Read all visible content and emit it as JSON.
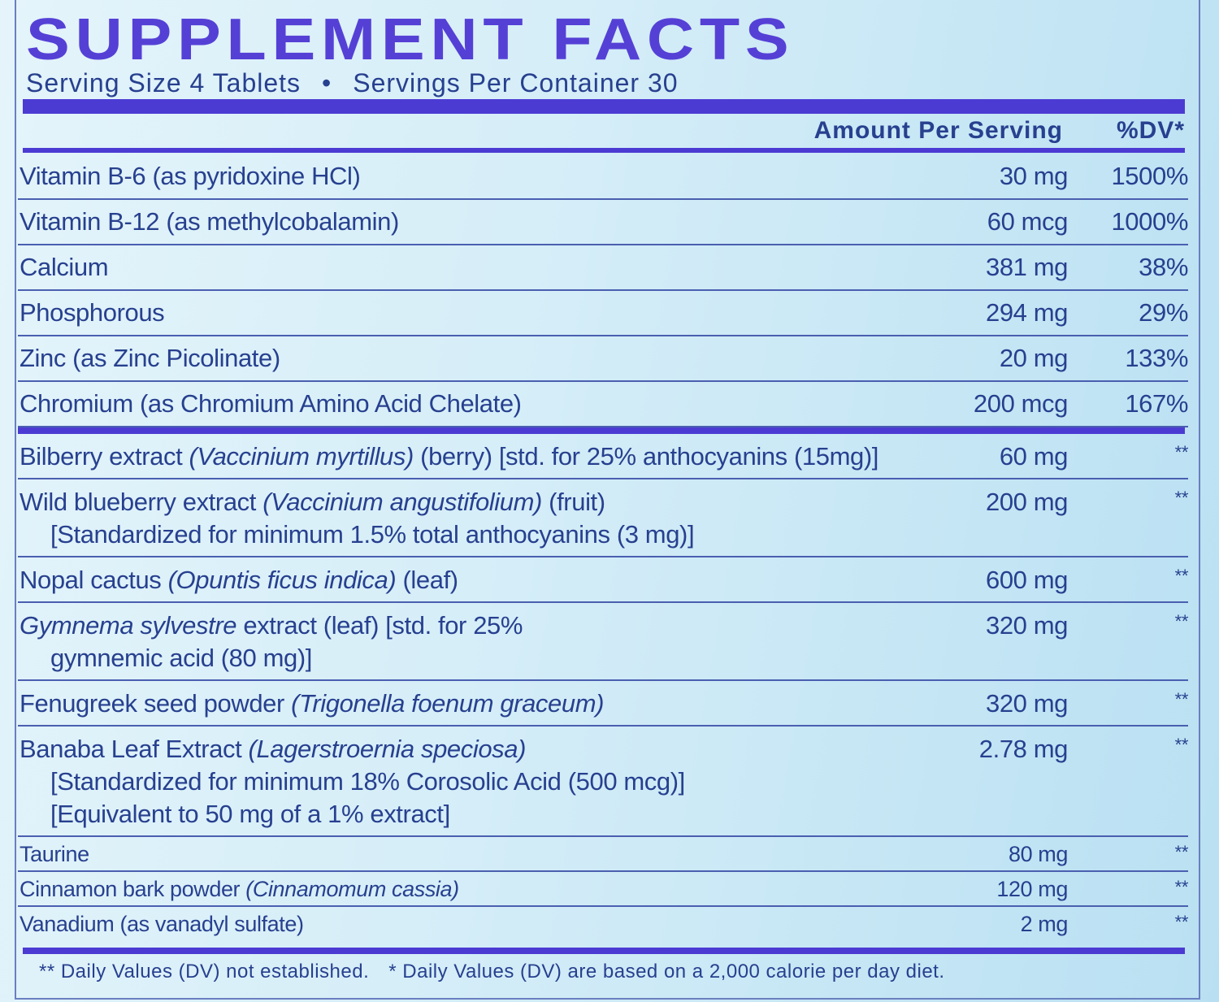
{
  "header": {
    "title": "SUPPLEMENT FACTS",
    "serving_size": "Serving Size 4 Tablets",
    "servings_per_container": "Servings Per Container 30"
  },
  "columns": {
    "amount": "Amount Per Serving",
    "dv": "%DV*"
  },
  "vitamins_minerals": [
    {
      "name": [
        {
          "text": "Vitamin B-6 (as pyridoxine HCl)"
        }
      ],
      "amount": "30 mg",
      "dv": "1500%"
    },
    {
      "name": [
        {
          "text": "Vitamin B-12 (as methylcobalamin)"
        }
      ],
      "amount": "60 mcg",
      "dv": "1000%"
    },
    {
      "name": [
        {
          "text": "Calcium"
        }
      ],
      "amount": "381 mg",
      "dv": "38%"
    },
    {
      "name": [
        {
          "text": "Phosphorous"
        }
      ],
      "amount": "294 mg",
      "dv": "29%"
    },
    {
      "name": [
        {
          "text": "Zinc (as Zinc Picolinate)"
        }
      ],
      "amount": "20 mg",
      "dv": "133%"
    },
    {
      "name": [
        {
          "text": "Chromium (as Chromium Amino Acid Chelate)"
        }
      ],
      "amount": "200 mcg",
      "dv": "167%"
    }
  ],
  "other_ingredients": [
    {
      "name": [
        {
          "text": "Bilberry extract"
        },
        {
          "text": "(Vaccinium myrtillus)",
          "italic": true
        },
        {
          "text": "(berry) [std. for 25% anthocyanins (15mg)]"
        }
      ],
      "amount": "60 mg",
      "dv": "**"
    },
    {
      "name": [
        {
          "text": "Wild blueberry extract"
        },
        {
          "text": "(Vaccinium angustifolium)",
          "italic": true
        },
        {
          "text": "(fruit)"
        }
      ],
      "sub": [
        "[Standardized for minimum 1.5% total anthocyanins (3 mg)]"
      ],
      "amount": "200 mg",
      "dv": "**"
    },
    {
      "name": [
        {
          "text": "Nopal cactus"
        },
        {
          "text": "(Opuntis ficus indica)",
          "italic": true
        },
        {
          "text": "(leaf)"
        }
      ],
      "amount": "600 mg",
      "dv": "**"
    },
    {
      "name": [
        {
          "text": "Gymnema sylvestre",
          "italic": true
        },
        {
          "text": "extract (leaf) [std. for 25%"
        }
      ],
      "sub": [
        "gymnemic acid (80 mg)]"
      ],
      "amount": "320 mg",
      "dv": "**"
    },
    {
      "name": [
        {
          "text": "Fenugreek seed powder"
        },
        {
          "text": "(Trigonella foenum graceum)",
          "italic": true
        }
      ],
      "amount": "320 mg",
      "dv": "**"
    },
    {
      "name": [
        {
          "text": "Banaba Leaf Extract"
        },
        {
          "text": "(Lagerstroernia speciosa)",
          "italic": true
        }
      ],
      "sub": [
        "[Standardized for minimum 18% Corosolic Acid (500 mcg)]",
        "[Equivalent to 50 mg of a 1% extract]"
      ],
      "amount": "2.78 mg",
      "dv": "**"
    },
    {
      "name": [
        {
          "text": "Taurine"
        }
      ],
      "amount": "80 mg",
      "dv": "**"
    },
    {
      "name": [
        {
          "text": "Cinnamon bark powder"
        },
        {
          "text": "(Cinnamomum cassia)",
          "italic": true
        }
      ],
      "amount": "120 mg",
      "dv": "**"
    },
    {
      "name": [
        {
          "text": "Vanadium (as vanadyl sulfate)"
        }
      ],
      "amount": "2 mg",
      "dv": "**"
    }
  ],
  "footnotes": [
    "** Daily Values (DV) not established.",
    "* Daily Values (DV) are based on a 2,000 calorie per day diet."
  ]
}
